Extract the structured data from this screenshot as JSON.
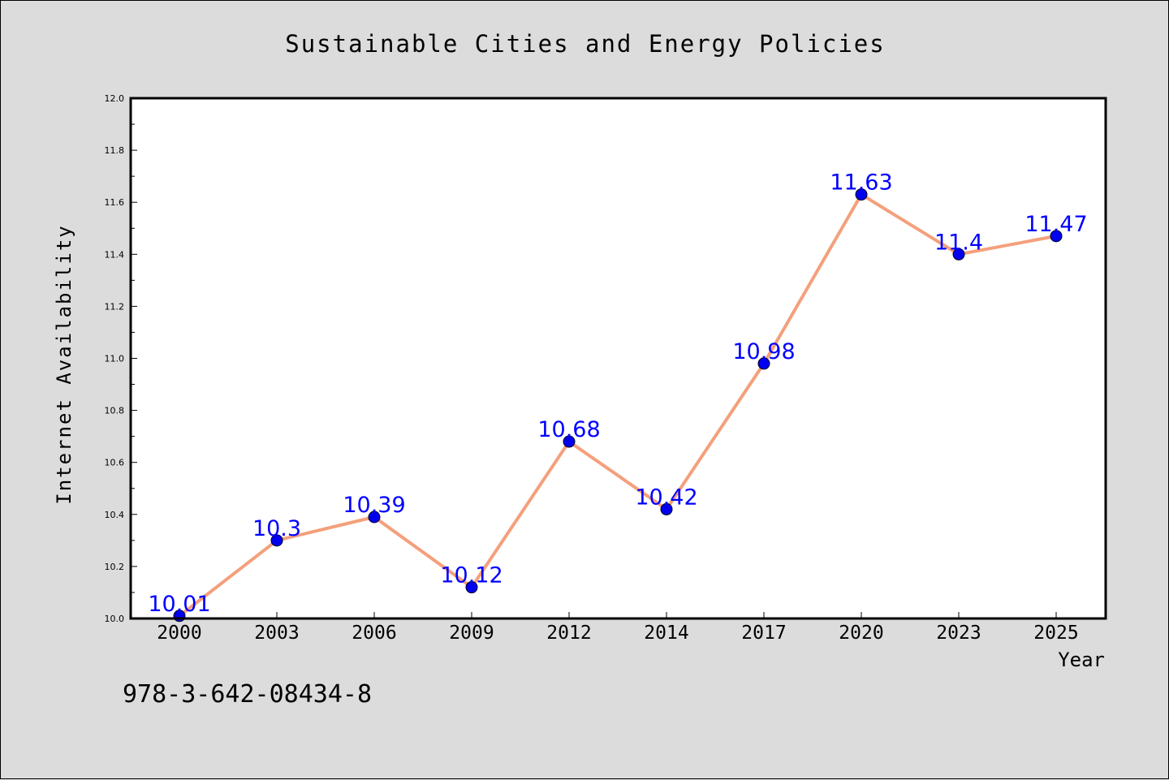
{
  "chart_data": {
    "type": "line",
    "title": "Sustainable Cities and Energy Policies",
    "xlabel": "Year",
    "ylabel": "Internet Availability",
    "categories": [
      "2000",
      "2003",
      "2006",
      "2009",
      "2012",
      "2014",
      "2017",
      "2020",
      "2023",
      "2025"
    ],
    "series": [
      {
        "values": [
          10.01,
          10.3,
          10.39,
          10.12,
          10.68,
          10.42,
          10.98,
          11.63,
          11.4,
          11.47
        ],
        "labels": [
          "10.01",
          "10.3",
          "10.39",
          "10.12",
          "10.68",
          "10.42",
          "10.98",
          "11.63",
          "11.4",
          "11.47"
        ],
        "line_color": "#f4a07c",
        "marker_color": "#0000ee",
        "label_color": "#0000ff"
      }
    ],
    "ylim": [
      10.0,
      12.0
    ],
    "yticks": [
      "10.0",
      "10.2",
      "10.4",
      "10.6",
      "10.8",
      "11.0",
      "11.2",
      "11.4",
      "11.6",
      "11.8",
      "12.0"
    ],
    "grid": false,
    "legend": "none",
    "annotation": "978-3-642-08434-8"
  }
}
